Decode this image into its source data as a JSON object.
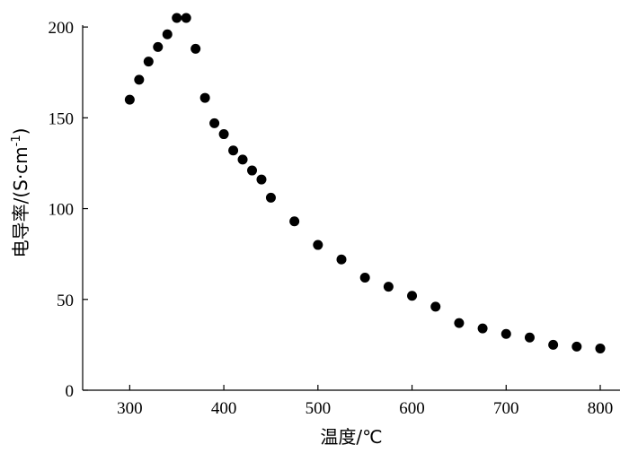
{
  "chart_data": {
    "type": "scatter",
    "title": "",
    "xlabel": "温度/℃",
    "ylabel_main": "电导率/(S·cm",
    "ylabel_sup": "-1",
    "ylabel_close": ")",
    "xlim": [
      250,
      800
    ],
    "ylim": [
      0,
      205
    ],
    "x_ticks": [
      300,
      400,
      500,
      600,
      700,
      800
    ],
    "y_ticks": [
      0,
      50,
      100,
      150,
      200
    ],
    "grid": false,
    "series": [
      {
        "x": [
          300,
          310,
          320,
          330,
          340,
          350,
          360,
          370,
          380,
          390,
          400,
          410,
          420,
          430,
          440,
          450,
          475,
          500,
          525,
          550,
          575,
          600,
          625,
          650,
          675,
          700,
          725,
          750,
          775,
          800
        ],
        "y": [
          160,
          171,
          181,
          189,
          196,
          205,
          205,
          188,
          161,
          147,
          141,
          132,
          127,
          121,
          116,
          106,
          93,
          80,
          72,
          62,
          57,
          52,
          46,
          37,
          34,
          31,
          29,
          25,
          24,
          23
        ]
      }
    ]
  }
}
